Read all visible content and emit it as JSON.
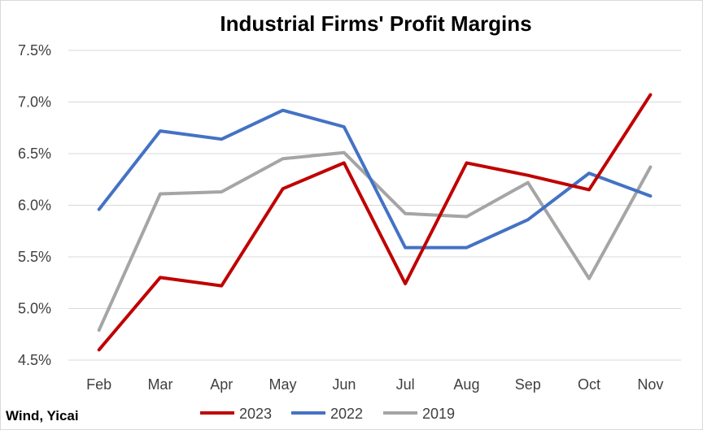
{
  "chart_data": {
    "type": "line",
    "title": "Industrial Firms' Profit Margins",
    "categories": [
      "Feb",
      "Mar",
      "Apr",
      "May",
      "Jun",
      "Jul",
      "Aug",
      "Sep",
      "Oct",
      "Nov"
    ],
    "ylim": [
      4.5,
      7.5
    ],
    "yticks": [
      "4.5%",
      "5.0%",
      "5.5%",
      "6.0%",
      "6.5%",
      "7.0%",
      "7.5%"
    ],
    "ytick_values": [
      4.5,
      5.0,
      5.5,
      6.0,
      6.5,
      7.0,
      7.5
    ],
    "grid": true,
    "legend_position": "bottom",
    "series": [
      {
        "name": "2023",
        "color": "#c00000",
        "values": [
          4.6,
          5.3,
          5.22,
          6.16,
          6.41,
          5.24,
          6.41,
          6.29,
          6.15,
          7.07
        ]
      },
      {
        "name": "2022",
        "color": "#4472c4",
        "values": [
          5.96,
          6.72,
          6.64,
          6.92,
          6.76,
          5.59,
          5.59,
          5.86,
          6.31,
          6.09
        ]
      },
      {
        "name": "2019",
        "color": "#a5a5a5",
        "values": [
          4.79,
          6.11,
          6.13,
          6.45,
          6.51,
          5.92,
          5.89,
          6.22,
          5.29,
          6.37
        ]
      }
    ],
    "source": "Wind, Yicai"
  }
}
